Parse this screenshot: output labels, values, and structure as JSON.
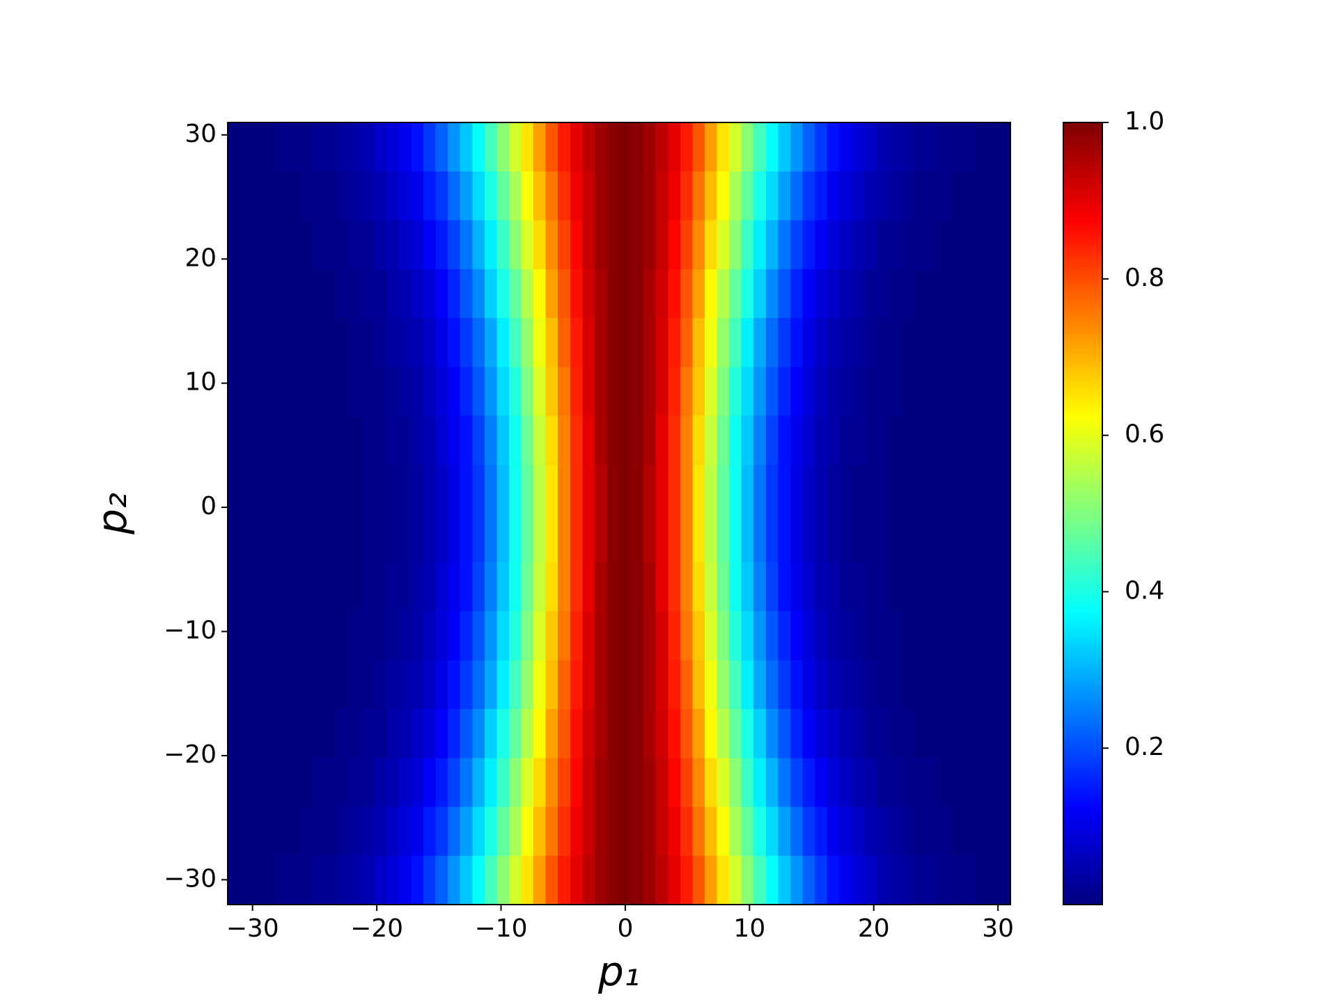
{
  "chart_data": {
    "type": "heatmap",
    "x_label": "p₁",
    "y_label": "p₂",
    "xlim": [
      -32,
      31
    ],
    "ylim": [
      -32,
      31
    ],
    "xticks": [
      {
        "value": -30,
        "label": "−30"
      },
      {
        "value": -20,
        "label": "−20"
      },
      {
        "value": -10,
        "label": "−10"
      },
      0,
      10,
      20,
      30
    ],
    "yticks": [
      {
        "value": -30,
        "label": "−30"
      },
      {
        "value": -20,
        "label": "−20"
      },
      {
        "value": -10,
        "label": "−10"
      },
      0,
      10,
      20,
      30
    ],
    "colormap": "jet",
    "clim": [
      0,
      1
    ],
    "cticks": [
      0.2,
      0.4,
      0.6,
      0.8,
      {
        "value": 1,
        "label": "1.0"
      }
    ],
    "z": [
      [
        0,
        0,
        0,
        0,
        0.01,
        0.01,
        0.01,
        0.02,
        0.02,
        0.03,
        0.04,
        0.05,
        0.07,
        0.09,
        0.11,
        0.14,
        0.18,
        0.22,
        0.27,
        0.32,
        0.38,
        0.44,
        0.51,
        0.58,
        0.65,
        0.72,
        0.79,
        0.85,
        0.9,
        0.94,
        0.97,
        0.99,
        1,
        0.99,
        0.97,
        0.94,
        0.9,
        0.85,
        0.79,
        0.72,
        0.65,
        0.58,
        0.51,
        0.44,
        0.38,
        0.32,
        0.27,
        0.22,
        0.18,
        0.14,
        0.11,
        0.09,
        0.07,
        0.05,
        0.04,
        0.03,
        0.02,
        0.02,
        0.01,
        0.01,
        0.01,
        0,
        0,
        0
      ],
      [
        0,
        0,
        0,
        0,
        0,
        0,
        0.01,
        0.01,
        0.01,
        0.02,
        0.03,
        0.04,
        0.05,
        0.07,
        0.09,
        0.11,
        0.15,
        0.18,
        0.23,
        0.28,
        0.34,
        0.4,
        0.47,
        0.54,
        0.62,
        0.69,
        0.76,
        0.83,
        0.89,
        0.93,
        0.97,
        0.99,
        1,
        0.99,
        0.97,
        0.93,
        0.89,
        0.83,
        0.76,
        0.69,
        0.62,
        0.54,
        0.47,
        0.4,
        0.34,
        0.28,
        0.23,
        0.18,
        0.15,
        0.11,
        0.09,
        0.07,
        0.05,
        0.04,
        0.03,
        0.02,
        0.01,
        0.01,
        0.01,
        0,
        0,
        0,
        0,
        0
      ],
      [
        0,
        0,
        0,
        0,
        0,
        0,
        0,
        0.01,
        0.01,
        0.01,
        0.02,
        0.02,
        0.04,
        0.05,
        0.07,
        0.09,
        0.12,
        0.15,
        0.19,
        0.24,
        0.3,
        0.36,
        0.43,
        0.51,
        0.59,
        0.66,
        0.74,
        0.81,
        0.87,
        0.93,
        0.97,
        0.99,
        1,
        0.99,
        0.97,
        0.93,
        0.87,
        0.81,
        0.74,
        0.66,
        0.59,
        0.51,
        0.43,
        0.36,
        0.3,
        0.24,
        0.19,
        0.15,
        0.12,
        0.09,
        0.07,
        0.05,
        0.04,
        0.02,
        0.02,
        0.01,
        0.01,
        0.01,
        0,
        0,
        0,
        0,
        0,
        0
      ],
      [
        0,
        0,
        0,
        0,
        0,
        0,
        0,
        0,
        0,
        0.01,
        0.01,
        0.02,
        0.02,
        0.04,
        0.05,
        0.07,
        0.09,
        0.12,
        0.16,
        0.21,
        0.26,
        0.33,
        0.4,
        0.47,
        0.55,
        0.63,
        0.72,
        0.79,
        0.86,
        0.92,
        0.96,
        0.99,
        1,
        0.99,
        0.96,
        0.92,
        0.86,
        0.79,
        0.72,
        0.63,
        0.55,
        0.47,
        0.4,
        0.33,
        0.26,
        0.21,
        0.16,
        0.12,
        0.09,
        0.07,
        0.05,
        0.04,
        0.02,
        0.02,
        0.01,
        0.01,
        0,
        0,
        0,
        0,
        0,
        0,
        0,
        0
      ],
      [
        0,
        0,
        0,
        0,
        0,
        0,
        0,
        0,
        0,
        0,
        0.01,
        0.01,
        0.02,
        0.03,
        0.04,
        0.05,
        0.07,
        0.1,
        0.14,
        0.18,
        0.23,
        0.29,
        0.36,
        0.44,
        0.52,
        0.61,
        0.69,
        0.78,
        0.85,
        0.91,
        0.96,
        0.99,
        1,
        0.99,
        0.96,
        0.91,
        0.85,
        0.78,
        0.69,
        0.61,
        0.52,
        0.44,
        0.36,
        0.29,
        0.23,
        0.18,
        0.14,
        0.1,
        0.07,
        0.05,
        0.04,
        0.03,
        0.02,
        0.01,
        0.01,
        0,
        0,
        0,
        0,
        0,
        0,
        0,
        0,
        0
      ],
      [
        0,
        0,
        0,
        0,
        0,
        0,
        0,
        0,
        0,
        0,
        0.01,
        0.01,
        0.01,
        0.02,
        0.03,
        0.04,
        0.06,
        0.09,
        0.12,
        0.16,
        0.21,
        0.27,
        0.34,
        0.41,
        0.5,
        0.59,
        0.68,
        0.76,
        0.84,
        0.91,
        0.96,
        0.99,
        1,
        0.99,
        0.96,
        0.91,
        0.84,
        0.76,
        0.68,
        0.59,
        0.5,
        0.41,
        0.34,
        0.27,
        0.21,
        0.16,
        0.12,
        0.09,
        0.06,
        0.04,
        0.03,
        0.02,
        0.01,
        0.01,
        0.01,
        0,
        0,
        0,
        0,
        0,
        0,
        0,
        0,
        0
      ],
      [
        0,
        0,
        0,
        0,
        0,
        0,
        0,
        0,
        0,
        0,
        0,
        0.01,
        0.01,
        0.02,
        0.02,
        0.04,
        0.05,
        0.08,
        0.11,
        0.14,
        0.19,
        0.25,
        0.32,
        0.39,
        0.48,
        0.57,
        0.66,
        0.75,
        0.83,
        0.9,
        0.96,
        0.99,
        1,
        0.99,
        0.96,
        0.9,
        0.83,
        0.75,
        0.66,
        0.57,
        0.48,
        0.39,
        0.32,
        0.25,
        0.19,
        0.14,
        0.11,
        0.08,
        0.05,
        0.04,
        0.02,
        0.02,
        0.01,
        0.01,
        0,
        0,
        0,
        0,
        0,
        0,
        0,
        0,
        0,
        0
      ],
      [
        0,
        0,
        0,
        0,
        0,
        0,
        0,
        0,
        0,
        0,
        0,
        0.01,
        0.01,
        0.01,
        0.02,
        0.03,
        0.05,
        0.07,
        0.1,
        0.14,
        0.18,
        0.24,
        0.31,
        0.39,
        0.47,
        0.56,
        0.65,
        0.75,
        0.83,
        0.9,
        0.95,
        0.99,
        1,
        0.99,
        0.95,
        0.9,
        0.83,
        0.75,
        0.65,
        0.56,
        0.47,
        0.39,
        0.31,
        0.24,
        0.18,
        0.14,
        0.1,
        0.07,
        0.05,
        0.03,
        0.02,
        0.01,
        0.01,
        0.01,
        0,
        0,
        0,
        0,
        0,
        0,
        0,
        0,
        0,
        0
      ],
      [
        0,
        0,
        0,
        0,
        0,
        0,
        0,
        0,
        0,
        0,
        0,
        0.01,
        0.01,
        0.01,
        0.02,
        0.03,
        0.05,
        0.07,
        0.1,
        0.14,
        0.18,
        0.24,
        0.31,
        0.39,
        0.47,
        0.56,
        0.65,
        0.75,
        0.83,
        0.9,
        0.95,
        0.99,
        1,
        0.99,
        0.95,
        0.9,
        0.83,
        0.75,
        0.65,
        0.56,
        0.47,
        0.39,
        0.31,
        0.24,
        0.18,
        0.14,
        0.1,
        0.07,
        0.05,
        0.03,
        0.02,
        0.01,
        0.01,
        0.01,
        0,
        0,
        0,
        0,
        0,
        0,
        0,
        0,
        0,
        0
      ],
      [
        0,
        0,
        0,
        0,
        0,
        0,
        0,
        0,
        0,
        0,
        0,
        0.01,
        0.01,
        0.02,
        0.02,
        0.04,
        0.05,
        0.08,
        0.11,
        0.14,
        0.19,
        0.25,
        0.32,
        0.39,
        0.48,
        0.57,
        0.66,
        0.75,
        0.83,
        0.9,
        0.96,
        0.99,
        1,
        0.99,
        0.96,
        0.9,
        0.83,
        0.75,
        0.66,
        0.57,
        0.48,
        0.39,
        0.32,
        0.25,
        0.19,
        0.14,
        0.11,
        0.08,
        0.05,
        0.04,
        0.02,
        0.02,
        0.01,
        0.01,
        0,
        0,
        0,
        0,
        0,
        0,
        0,
        0,
        0,
        0
      ],
      [
        0,
        0,
        0,
        0,
        0,
        0,
        0,
        0,
        0,
        0,
        0.01,
        0.01,
        0.01,
        0.02,
        0.03,
        0.04,
        0.06,
        0.09,
        0.12,
        0.16,
        0.21,
        0.27,
        0.34,
        0.41,
        0.5,
        0.59,
        0.68,
        0.76,
        0.84,
        0.91,
        0.96,
        0.99,
        1,
        0.99,
        0.96,
        0.91,
        0.84,
        0.76,
        0.68,
        0.59,
        0.5,
        0.41,
        0.34,
        0.27,
        0.21,
        0.16,
        0.12,
        0.09,
        0.06,
        0.04,
        0.03,
        0.02,
        0.01,
        0.01,
        0.01,
        0,
        0,
        0,
        0,
        0,
        0,
        0,
        0,
        0
      ],
      [
        0,
        0,
        0,
        0,
        0,
        0,
        0,
        0,
        0,
        0,
        0.01,
        0.01,
        0.02,
        0.03,
        0.04,
        0.05,
        0.07,
        0.1,
        0.14,
        0.18,
        0.23,
        0.29,
        0.36,
        0.44,
        0.52,
        0.61,
        0.69,
        0.78,
        0.85,
        0.91,
        0.96,
        0.99,
        1,
        0.99,
        0.96,
        0.91,
        0.85,
        0.78,
        0.69,
        0.61,
        0.52,
        0.44,
        0.36,
        0.29,
        0.23,
        0.18,
        0.14,
        0.1,
        0.07,
        0.05,
        0.04,
        0.03,
        0.02,
        0.01,
        0.01,
        0,
        0,
        0,
        0,
        0,
        0,
        0,
        0,
        0
      ],
      [
        0,
        0,
        0,
        0,
        0,
        0,
        0,
        0,
        0,
        0.01,
        0.01,
        0.02,
        0.02,
        0.04,
        0.05,
        0.07,
        0.09,
        0.12,
        0.16,
        0.21,
        0.26,
        0.33,
        0.4,
        0.47,
        0.55,
        0.63,
        0.72,
        0.79,
        0.86,
        0.92,
        0.96,
        0.99,
        1,
        0.99,
        0.96,
        0.92,
        0.86,
        0.79,
        0.72,
        0.63,
        0.55,
        0.47,
        0.4,
        0.33,
        0.26,
        0.21,
        0.16,
        0.12,
        0.09,
        0.07,
        0.05,
        0.04,
        0.02,
        0.02,
        0.01,
        0.01,
        0,
        0,
        0,
        0,
        0,
        0,
        0,
        0
      ],
      [
        0,
        0,
        0,
        0,
        0,
        0,
        0,
        0.01,
        0.01,
        0.01,
        0.02,
        0.02,
        0.04,
        0.05,
        0.07,
        0.09,
        0.12,
        0.15,
        0.19,
        0.24,
        0.3,
        0.36,
        0.43,
        0.51,
        0.59,
        0.66,
        0.74,
        0.81,
        0.87,
        0.93,
        0.97,
        0.99,
        1,
        0.99,
        0.97,
        0.93,
        0.87,
        0.81,
        0.74,
        0.66,
        0.59,
        0.51,
        0.43,
        0.36,
        0.3,
        0.24,
        0.19,
        0.15,
        0.12,
        0.09,
        0.07,
        0.05,
        0.04,
        0.02,
        0.02,
        0.01,
        0.01,
        0.01,
        0,
        0,
        0,
        0,
        0,
        0
      ],
      [
        0,
        0,
        0,
        0,
        0,
        0,
        0.01,
        0.01,
        0.01,
        0.02,
        0.03,
        0.04,
        0.05,
        0.07,
        0.09,
        0.11,
        0.15,
        0.18,
        0.23,
        0.28,
        0.34,
        0.4,
        0.47,
        0.54,
        0.62,
        0.69,
        0.76,
        0.83,
        0.89,
        0.93,
        0.97,
        0.99,
        1,
        0.99,
        0.97,
        0.93,
        0.89,
        0.83,
        0.76,
        0.69,
        0.62,
        0.54,
        0.47,
        0.4,
        0.34,
        0.28,
        0.23,
        0.18,
        0.15,
        0.11,
        0.09,
        0.07,
        0.05,
        0.04,
        0.03,
        0.02,
        0.01,
        0.01,
        0.01,
        0,
        0,
        0,
        0,
        0
      ],
      [
        0,
        0,
        0,
        0,
        0.01,
        0.01,
        0.01,
        0.02,
        0.02,
        0.03,
        0.04,
        0.05,
        0.07,
        0.09,
        0.11,
        0.14,
        0.18,
        0.22,
        0.27,
        0.32,
        0.38,
        0.44,
        0.51,
        0.58,
        0.65,
        0.72,
        0.79,
        0.85,
        0.9,
        0.94,
        0.97,
        0.99,
        1,
        0.99,
        0.97,
        0.94,
        0.9,
        0.85,
        0.79,
        0.72,
        0.65,
        0.58,
        0.51,
        0.44,
        0.38,
        0.32,
        0.27,
        0.22,
        0.18,
        0.14,
        0.11,
        0.09,
        0.07,
        0.05,
        0.04,
        0.03,
        0.02,
        0.02,
        0.01,
        0.01,
        0.01,
        0,
        0,
        0
      ]
    ]
  }
}
